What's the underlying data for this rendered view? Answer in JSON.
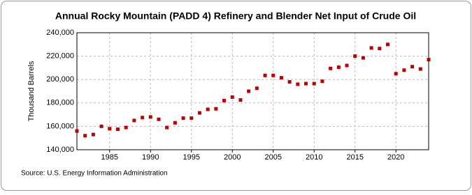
{
  "chart_data": {
    "type": "scatter",
    "title": "Annual Rocky Mountain (PADD 4) Refinery and Blender Net Input of Crude Oil",
    "y_label": "Thousand Barrels",
    "source": "Source: U.S. Energy Information Administration",
    "x": [
      1981,
      1982,
      1983,
      1984,
      1985,
      1986,
      1987,
      1988,
      1989,
      1990,
      1991,
      1992,
      1993,
      1994,
      1995,
      1996,
      1997,
      1998,
      1999,
      2000,
      2001,
      2002,
      2003,
      2004,
      2005,
      2006,
      2007,
      2008,
      2009,
      2010,
      2011,
      2012,
      2013,
      2014,
      2015,
      2016,
      2017,
      2018,
      2019,
      2020,
      2021,
      2022,
      2023,
      2024
    ],
    "series": [
      {
        "name": "Rocky Mountain (PADD 4) Refinery and Blender Net Input of Crude Oil",
        "color": "#c00000",
        "values": [
          156000,
          152000,
          153000,
          160000,
          158000,
          157500,
          159000,
          165000,
          167500,
          168000,
          166000,
          159000,
          163000,
          167000,
          167000,
          171500,
          174500,
          175000,
          182000,
          185000,
          182500,
          190000,
          192500,
          203500,
          203500,
          201500,
          198000,
          196000,
          196500,
          196500,
          198500,
          209500,
          210500,
          212000,
          220000,
          218500,
          227000,
          226500,
          230000,
          205000,
          208000,
          211000,
          209000,
          217000
        ]
      }
    ],
    "xlim": [
      1981,
      2024
    ],
    "xticks": [
      1985,
      1990,
      1995,
      2000,
      2005,
      2010,
      2015,
      2020
    ],
    "ylim": [
      140000,
      240000
    ],
    "yticks": [
      {
        "value": 140000,
        "label": "140,000"
      },
      {
        "value": 160000,
        "label": "160,000"
      },
      {
        "value": 180000,
        "label": "180,000"
      },
      {
        "value": 200000,
        "label": "200,000"
      },
      {
        "value": 220000,
        "label": "220,000"
      },
      {
        "value": 240000,
        "label": "240,000"
      }
    ],
    "grid": true
  }
}
